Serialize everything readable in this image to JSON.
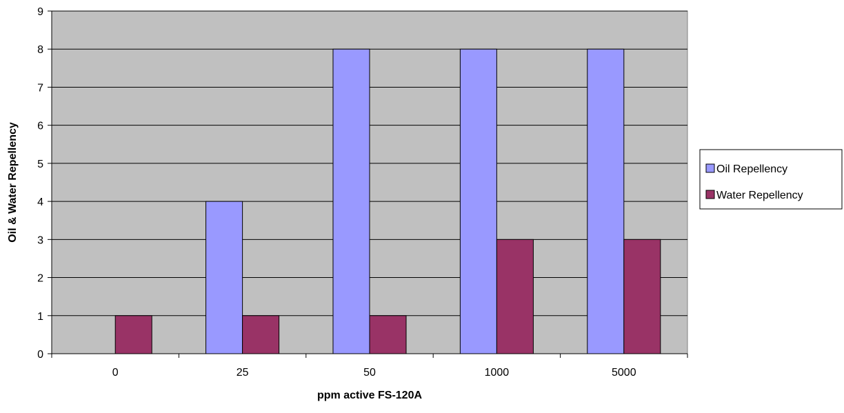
{
  "chart_data": {
    "type": "bar",
    "title": "",
    "xlabel": "ppm active FS-120A",
    "ylabel": "Oil & Water Repellency",
    "categories": [
      "0",
      "25",
      "50",
      "1000",
      "5000"
    ],
    "series": [
      {
        "name": "Oil Repellency",
        "values": [
          0,
          4,
          8,
          8,
          8
        ],
        "color": "#9999ff"
      },
      {
        "name": "Water Repellency",
        "values": [
          1,
          1,
          1,
          3,
          3
        ],
        "color": "#993366"
      }
    ],
    "ylim": [
      0,
      9
    ],
    "yticks": [
      0,
      1,
      2,
      3,
      4,
      5,
      6,
      7,
      8,
      9
    ],
    "grid": true,
    "plot_background": "#c0c0c0",
    "legend_position": "right"
  }
}
